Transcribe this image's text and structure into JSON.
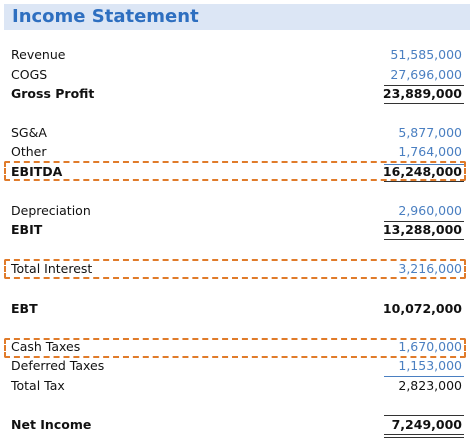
{
  "header": {
    "title": "Income Statement"
  },
  "table": {
    "rows": [
      [
        "Revenue",
        "51,585,000"
      ],
      [
        "COGS",
        "27,696,000"
      ],
      [
        "Gross Profit",
        "23,889,000"
      ],
      [
        "SG&A",
        "5,877,000"
      ],
      [
        "Other",
        "1,764,000"
      ],
      [
        "EBITDA",
        "16,248,000"
      ],
      [
        "Depreciation",
        "2,960,000"
      ],
      [
        "EBIT",
        "13,288,000"
      ],
      [
        "Total Interest",
        "3,216,000"
      ],
      [
        "EBT",
        "10,072,000"
      ],
      [
        "Cash Taxes",
        "1,670,000"
      ],
      [
        "Deferred Taxes",
        "1,153,000"
      ],
      [
        "Total Tax",
        "2,823,000"
      ],
      [
        "Net Income",
        "7,249,000"
      ]
    ]
  }
}
